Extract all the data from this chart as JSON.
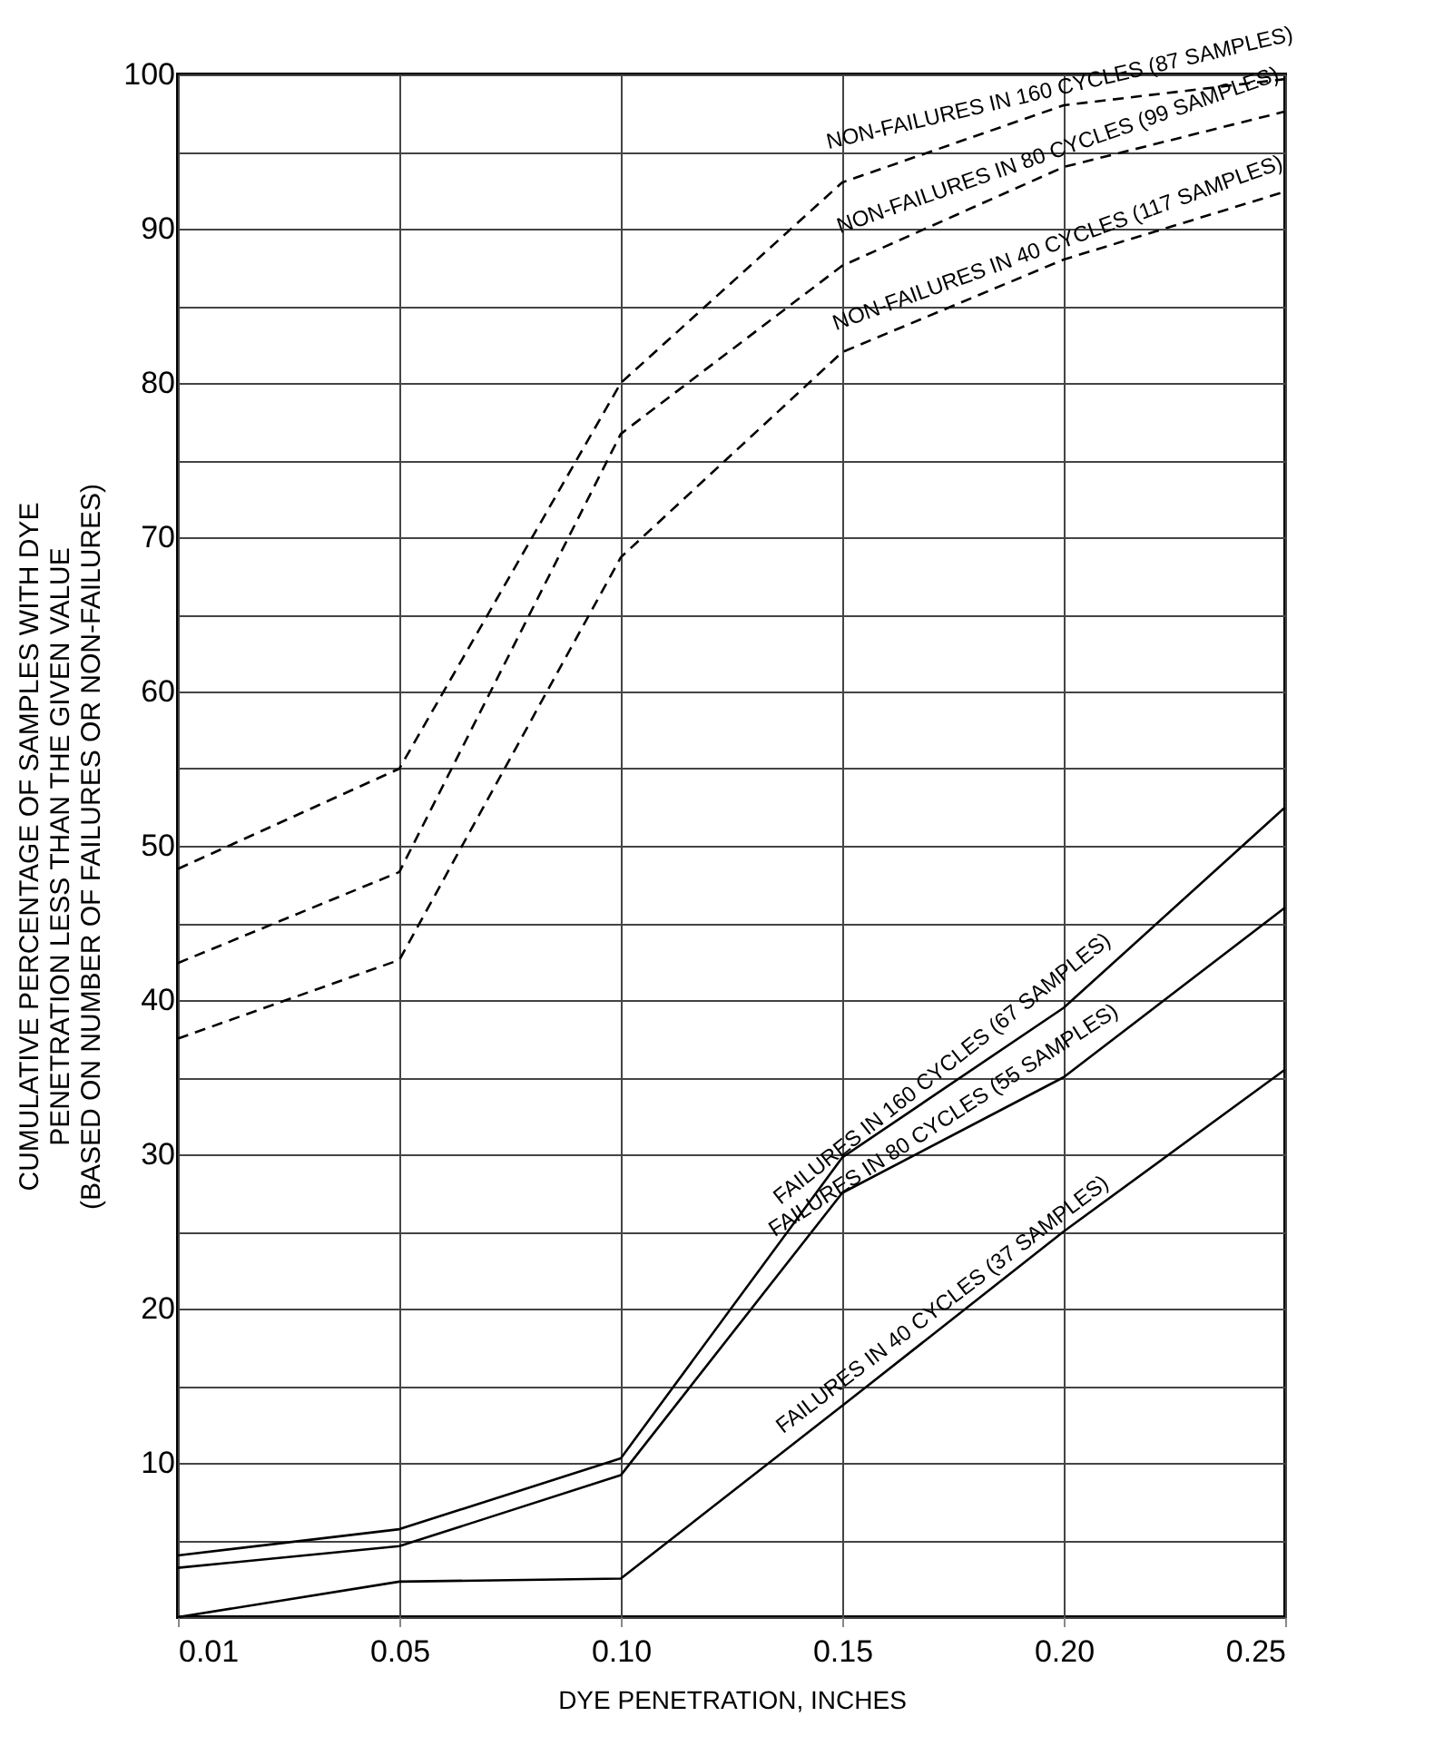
{
  "chart_data": {
    "type": "line",
    "xlabel": "DYE PENETRATION, INCHES",
    "ylabel": "CUMULATIVE PERCENTAGE OF SAMPLES WITH DYE\nPENETRATION LESS THAN THE GIVEN VALUE\n(BASED ON NUMBER OF FAILURES OR NON-FAILURES)",
    "categories": [
      "0.01",
      "0.05",
      "0.10",
      "0.15",
      "0.20",
      "0.25"
    ],
    "ylim": [
      0,
      100
    ],
    "yticks": [
      {
        "value": 0,
        "label": null
      },
      {
        "value": 5,
        "label": null
      },
      10,
      {
        "value": 15,
        "label": null
      },
      20,
      {
        "value": 25,
        "label": null
      },
      30,
      {
        "value": 35,
        "label": null
      },
      40,
      {
        "value": 45,
        "label": null
      },
      50,
      {
        "value": 55,
        "label": null
      },
      60,
      {
        "value": 65,
        "label": null
      },
      70,
      {
        "value": 75,
        "label": null
      },
      80,
      {
        "value": 85,
        "label": null
      },
      90,
      {
        "value": 95,
        "label": null
      },
      100
    ],
    "grid": true,
    "series": [
      {
        "name": "NON-FAILURES IN 160 CYCLES (87 SAMPLES)",
        "color": "#000000",
        "line_style": "dashed",
        "values": [
          48.5,
          55,
          80,
          93,
          98,
          99.7
        ]
      },
      {
        "name": "NON-FAILURES IN 80 CYCLES (99 SAMPLES)",
        "color": "#000000",
        "line_style": "dashed",
        "values": [
          42.4,
          48.3,
          76.7,
          87.6,
          94,
          97.6
        ]
      },
      {
        "name": "NON-FAILURES IN 40 CYCLES (117 SAMPLES)",
        "color": "#000000",
        "line_style": "dashed",
        "values": [
          37.5,
          42.6,
          68.7,
          82,
          88,
          92.4
        ]
      },
      {
        "name": "FAILURES IN 160 CYCLES (67 SAMPLES)",
        "color": "#000000",
        "line_style": "solid",
        "values": [
          4,
          5.7,
          10.3,
          29.8,
          39.5,
          52.5
        ]
      },
      {
        "name": "FAILURES IN 80 CYCLES (55 SAMPLES)",
        "color": "#000000",
        "line_style": "solid",
        "values": [
          3.2,
          4.6,
          9.2,
          27.5,
          35,
          46
        ]
      },
      {
        "name": "FAILURES IN 40 CYCLES (37 SAMPLES)",
        "color": "#000000",
        "line_style": "solid",
        "values": [
          0,
          2.3,
          2.5,
          13.7,
          25,
          35.5
        ]
      }
    ]
  }
}
